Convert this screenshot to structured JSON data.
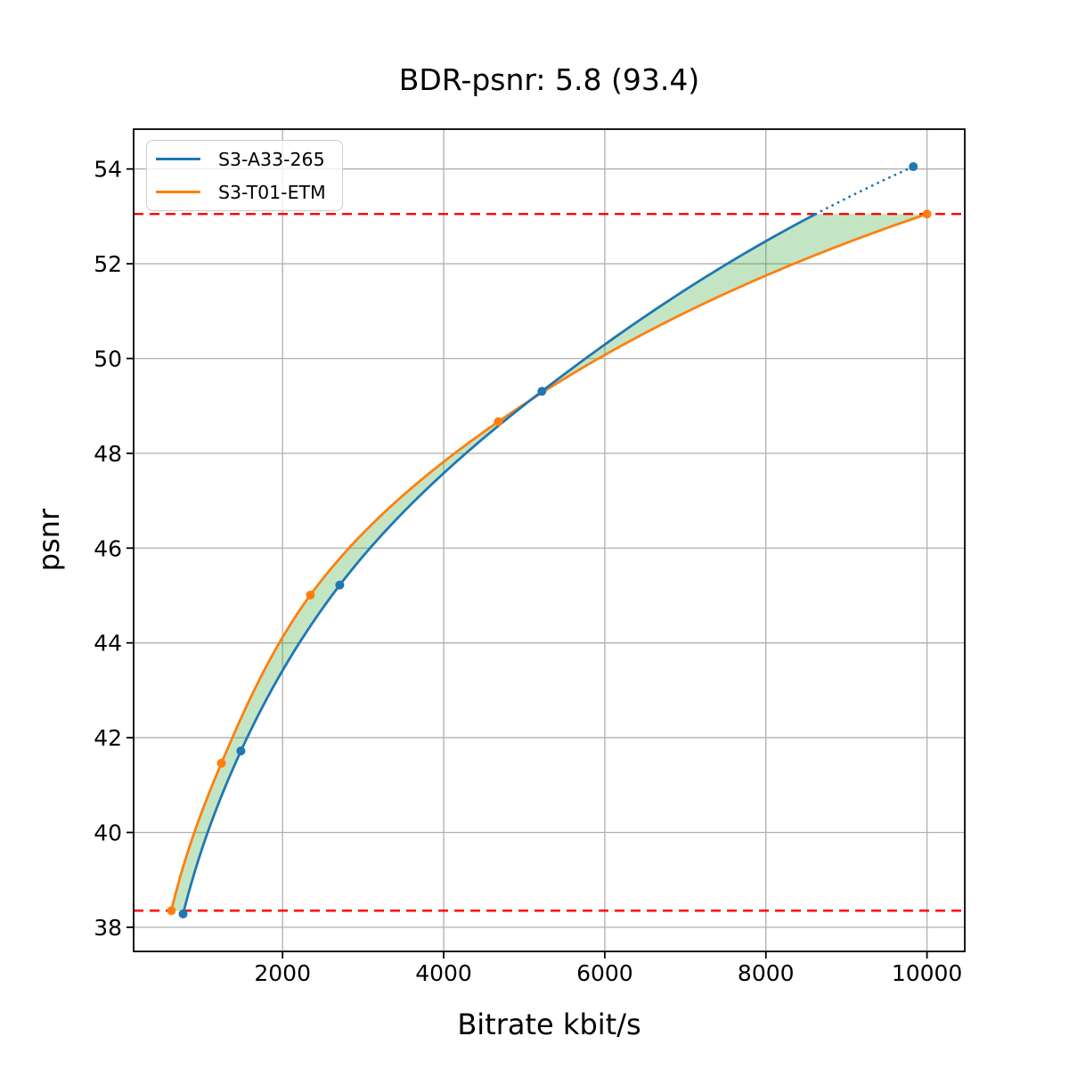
{
  "chart_data": {
    "type": "line",
    "title": "BDR-psnr: 5.8 (93.4)",
    "xlabel": "Bitrate kbit/s",
    "ylabel": "psnr",
    "xlim": [
      151,
      10469
    ],
    "ylim": [
      37.49,
      54.84
    ],
    "x_ticks": [
      "2000",
      "4000",
      "6000",
      "8000",
      "10000"
    ],
    "x_tick_values": [
      2000,
      4000,
      6000,
      8000,
      10000
    ],
    "y_ticks": [
      "38",
      "40",
      "42",
      "44",
      "46",
      "48",
      "50",
      "52",
      "54"
    ],
    "y_tick_values": [
      38,
      40,
      42,
      44,
      46,
      48,
      50,
      52,
      54
    ],
    "grid": true,
    "grid_color": "#b0b0b0",
    "legend_position": "upper left",
    "series": [
      {
        "name": "S3-A33-265",
        "color": "#1f77b4",
        "marker": "o",
        "line_style": "solid, dotted where psnr exceeds overlap max 53.05",
        "points": [
          [
            765,
            38.28
          ],
          [
            1483,
            41.72
          ],
          [
            2710,
            45.22
          ],
          [
            5220,
            49.31
          ],
          [
            9830,
            54.05
          ]
        ]
      },
      {
        "name": "S3-T01-ETM",
        "color": "#ff7f0e",
        "marker": "o",
        "line_style": "solid",
        "points": [
          [
            620,
            38.35
          ],
          [
            1240,
            41.46
          ],
          [
            2345,
            45.01
          ],
          [
            4680,
            48.67
          ],
          [
            10000,
            53.05
          ]
        ]
      }
    ],
    "hlines": [
      {
        "y": 53.05,
        "color": "#ff0000",
        "style": "dashed",
        "note": "overlap psnr max"
      },
      {
        "y": 38.35,
        "color": "#ff0000",
        "style": "dashed",
        "note": "overlap psnr min"
      }
    ],
    "fill_between": {
      "color": "#2ca02c",
      "alpha": 0.28,
      "between": "area between the two interpolated curves, clipped to psnr range [38.35, 53.05]"
    },
    "interpolation": "monotone cubic (pchip) over log10(bitrate)"
  }
}
